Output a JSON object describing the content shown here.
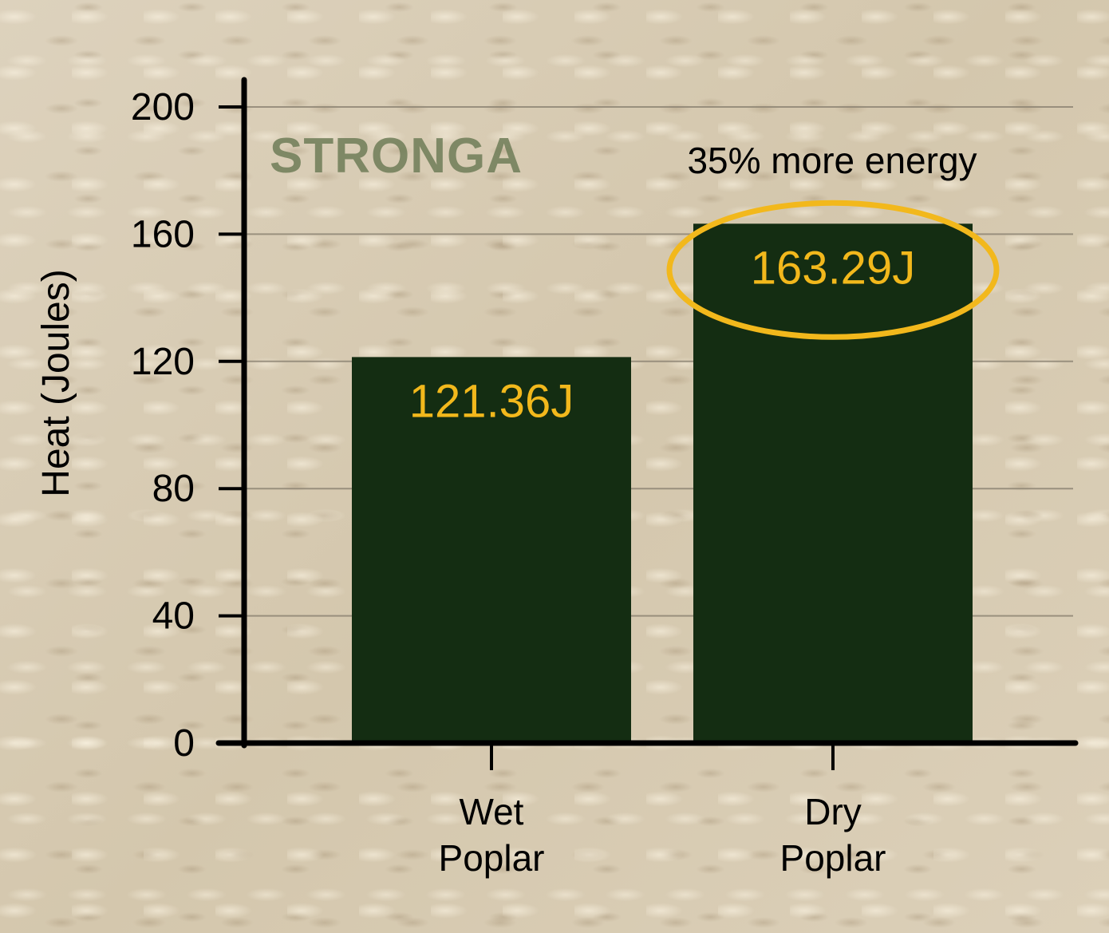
{
  "chart_data": {
    "type": "bar",
    "categories": [
      "Wet\nPoplar",
      "Dry\nPoplar"
    ],
    "values": [
      121.36,
      163.29
    ],
    "value_labels": [
      "121.36J",
      "163.29J"
    ],
    "ylabel": "Heat (Joules)",
    "ylim": [
      0,
      200
    ],
    "yticks": [
      0,
      40,
      80,
      120,
      160,
      200
    ],
    "grid": true,
    "annotation": "35% more energy",
    "highlighted_category": "Dry\nPoplar",
    "watermark": "STRONGA",
    "colors": {
      "bar": "#142d12",
      "value_label": "#f2b81c",
      "highlight_ring": "#f2b81c",
      "grid": "#8a8170",
      "axis": "#000000"
    }
  }
}
